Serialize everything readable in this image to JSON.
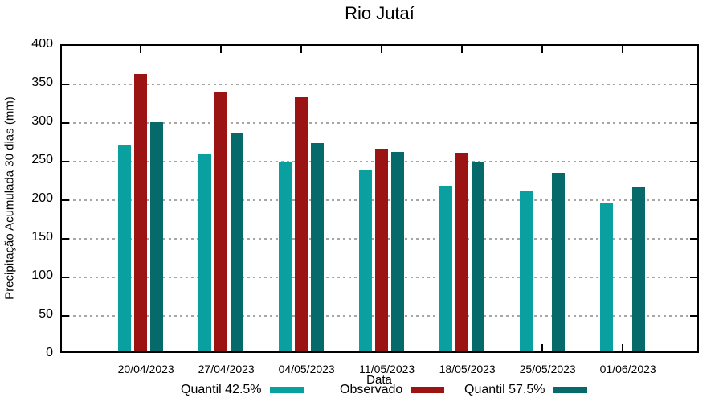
{
  "chart_data": {
    "type": "bar",
    "title": "Rio Jutaí",
    "xlabel": "Data",
    "ylabel": "Precipitação Acumulada 30 dias (mm)",
    "ylim": [
      0,
      400
    ],
    "yticks": [
      0,
      50,
      100,
      150,
      200,
      250,
      300,
      350,
      400
    ],
    "grid": "horizontal-dotted",
    "legend_position": "bottom",
    "categories": [
      "20/04/2023",
      "27/04/2023",
      "04/05/2023",
      "11/05/2023",
      "18/05/2023",
      "25/05/2023",
      "01/06/2023"
    ],
    "series": [
      {
        "name": "Quantil 42.5%",
        "color": "#0AA0A0",
        "values": [
          268,
          256,
          246,
          235,
          215,
          207,
          193
        ]
      },
      {
        "name": "Observado",
        "color": "#9B1313",
        "values": [
          359,
          336,
          329,
          262,
          257,
          null,
          null
        ]
      },
      {
        "name": "Quantil 57.5%",
        "color": "#076A6A",
        "values": [
          297,
          283,
          270,
          258,
          246,
          231,
          213
        ]
      }
    ],
    "axis_color": "#000000",
    "gridline_color": "#a6a6a6"
  }
}
